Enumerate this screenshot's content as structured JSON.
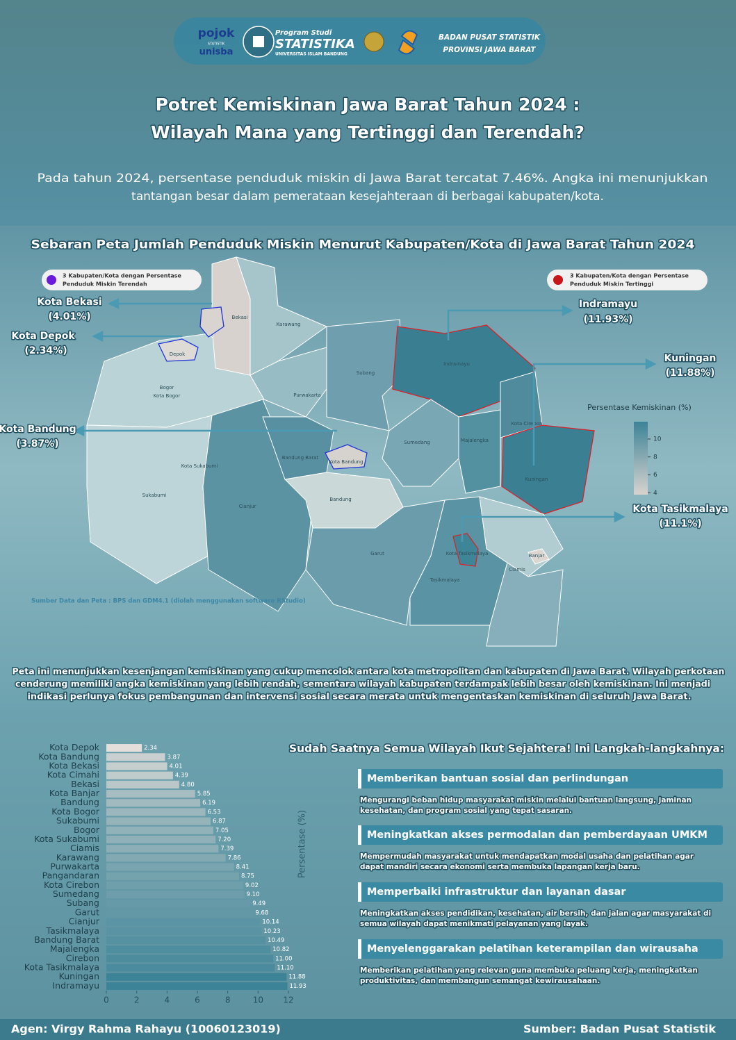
{
  "header": {
    "logo1_top": "pojok",
    "logo1_mid": "STATISTIK",
    "logo1_bottom": "unisba",
    "prodi_top": "Program Studi",
    "prodi_main": "STATISTIKA",
    "prodi_bottom": "UNIVERSITAS ISLAM BANDUNG",
    "bps_line1": "BADAN PUSAT STATISTIK",
    "bps_line2": "PROVINSI JAWA BARAT"
  },
  "title_lines": [
    "Potret Kemiskinan Jawa Barat Tahun 2024  :",
    "Wilayah Mana yang Tertinggi dan Terendah?"
  ],
  "intro_lines": [
    "Pada tahun 2024, persentase penduduk miskin di Jawa Barat tercatat 7.46%. Angka ini menunjukkan",
    "tantangan besar dalam pemerataan kesejahteraan di berbagai kabupaten/kota."
  ],
  "map": {
    "title": "Sebaran Peta Jumlah Penduduk Miskin Menurut Kabupaten/Kota di Jawa Barat Tahun 2024",
    "legend_low": [
      "3 Kabupaten/Kota dengan Persentase",
      "Penduduk Miskin Terendah"
    ],
    "legend_high": [
      "3 Kabupaten/Kota dengan Persentase",
      "Penduduk Miskin Tertinggi"
    ],
    "callouts": [
      {
        "name": "Kota Bekasi",
        "value": "(4.01%)"
      },
      {
        "name": "Kota Depok",
        "value": "(2.34%)"
      },
      {
        "name": "Kota Bandung",
        "value": "(3.87%)"
      },
      {
        "name": "Indramayu",
        "value": "(11.93%)"
      },
      {
        "name": "Kuningan",
        "value": "(11.88%)"
      },
      {
        "name": "Kota Tasikmalaya",
        "value": "(11.1%)"
      }
    ],
    "regions": [
      "Bekasi",
      "Karawang",
      "Depok",
      "Bogor",
      "Kota Bogor",
      "Subang",
      "Indramayu",
      "Purwakarta",
      "Sumedang",
      "Majalengka",
      "Kota Cirebon",
      "Bandung Barat",
      "Kota Bandung",
      "Kota Sukabumi",
      "Sukabumi",
      "Cianjur",
      "Kuningan",
      "Bandung",
      "Garut",
      "Kota Tasikmalaya",
      "Banjar",
      "Ciamis",
      "Tasikmalaya"
    ],
    "colorbar": {
      "title": "Persentase Kemiskinan (%)",
      "lim": [
        3.8,
        11.93
      ],
      "ticks": [
        4,
        6,
        8,
        10
      ],
      "colors": [
        "#d8d3ce",
        "#3c8397"
      ]
    },
    "source": "Sumber Data dan Peta : BPS dan GDM4.1  (diolah menggunakan software RStudio)"
  },
  "summary_lines": [
    "Peta ini menunjukkan kesenjangan kemiskinan yang cukup mencolok antara kota metropolitan dan kabupaten di Jawa Barat. Wilayah perkotaan",
    "cenderung memiliki angka kemiskinan yang lebih rendah, sementara wilayah kabupaten terdampak lebih besar oleh kemiskinan. Ini menjadi",
    "indikasi perlunya fokus pembangunan dan intervensi sosial secara merata untuk mengentaskan kemiskinan di seluruh Jawa Barat."
  ],
  "chart_data": {
    "type": "barh",
    "axis_label": "Persentase (%)",
    "categories": [
      "Kota Depok",
      "Kota Bandung",
      "Kota Bekasi",
      "Kota Cimahi",
      "Bekasi",
      "Kota Banjar",
      "Bandung",
      "Kota Bogor",
      "Sukabumi",
      "Bogor",
      "Kota Sukabumi",
      "Ciamis",
      "Karawang",
      "Purwakarta",
      "Pangandaran",
      "Kota Cirebon",
      "Sumedang",
      "Subang",
      "Garut",
      "Cianjur",
      "Tasikmalaya",
      "Bandung Barat",
      "Majalengka",
      "Cirebon",
      "Kota Tasikmalaya",
      "Kuningan",
      "Indramayu"
    ],
    "values": [
      2.34,
      3.87,
      4.01,
      4.39,
      4.8,
      5.85,
      6.19,
      6.53,
      6.87,
      7.05,
      7.2,
      7.39,
      7.86,
      8.41,
      8.75,
      9.02,
      9.1,
      9.49,
      9.68,
      10.14,
      10.23,
      10.49,
      10.82,
      11.0,
      11.1,
      11.88,
      11.93
    ],
    "value_labels": [
      "2.34",
      "3.87",
      "4.01",
      "4.39",
      "4.80",
      "5.85",
      "6.19",
      "6.53",
      "6.87",
      "7.05",
      "7.20",
      "7.39",
      "7.86",
      "8.41",
      "8.75",
      "9.02",
      "9.10",
      "9.49",
      "9.68",
      "10.14",
      "10.23",
      "10.49",
      "10.82",
      "11.00",
      "11.10",
      "11.88",
      "11.93"
    ],
    "colors": [
      "#e4dfda",
      "#3c8397"
    ],
    "xlim": [
      0,
      12
    ],
    "xticks": [
      0,
      2,
      4,
      6,
      8,
      10,
      12
    ]
  },
  "steps": {
    "title": "Sudah Saatnya Semua Wilayah Ikut Sejahtera! Ini Langkah-langkahnya:",
    "items": [
      {
        "heading": "Memberikan bantuan sosial dan perlindungan",
        "lines": [
          "Mengurangi beban hidup masyarakat miskin melalui bantuan langsung, jaminan",
          "kesehatan, dan program sosial yang tepat sasaran."
        ]
      },
      {
        "heading": "Meningkatkan akses permodalan dan pemberdayaan UMKM",
        "lines": [
          "Mempermudah masyarakat untuk mendapatkan modal usaha dan pelatihan agar",
          "dapat mandiri secara ekonomi serta membuka lapangan kerja baru."
        ]
      },
      {
        "heading": "Memperbaiki infrastruktur dan layanan dasar",
        "lines": [
          "Meningkatkan akses pendidikan, kesehatan, air bersih, dan jalan agar masyarakat di",
          "semua wilayah dapat menikmati pelayanan yang layak."
        ]
      },
      {
        "heading": "Menyelenggarakan pelatihan keterampilan dan wirausaha",
        "lines": [
          "Memberikan pelatihan yang relevan guna membuka peluang kerja, meningkatkan",
          "produktivitas, dan membangun semangat kewirausahaan."
        ]
      }
    ]
  },
  "footer": {
    "author": "Agen: Virgy Rahma Rahayu (10060123019)",
    "source": "Sumber: Badan Pusat Statistik"
  }
}
